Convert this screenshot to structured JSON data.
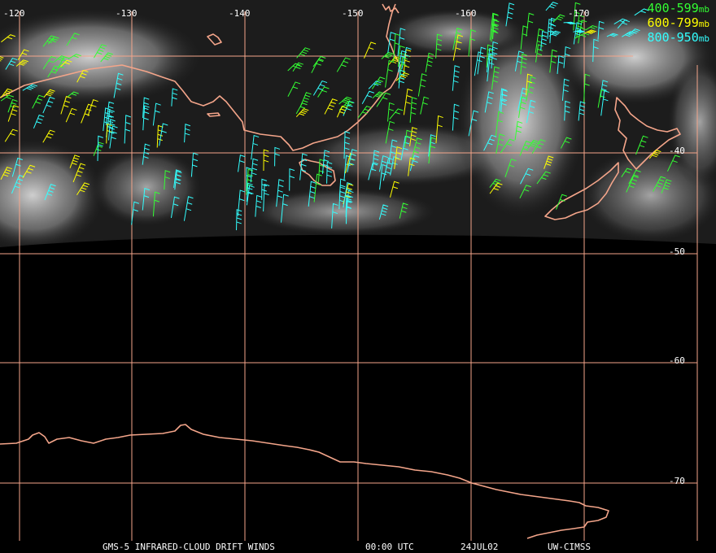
{
  "colors": {
    "grid": "#f4a58a",
    "coastline": "#f4a58a",
    "background": "#000000",
    "labels": "#ffffff"
  },
  "longitude_labels": [
    "-120",
    "-130",
    "-140",
    "-150",
    "-160",
    "-170"
  ],
  "latitude_labels": [
    "-40",
    "-50",
    "-60",
    "-70"
  ],
  "legend": [
    {
      "range": "400-599",
      "unit": "mb",
      "color": "#33ff33"
    },
    {
      "range": "600-799",
      "unit": "mb",
      "color": "#ffff00"
    },
    {
      "range": "800-950",
      "unit": "mb",
      "color": "#33ffff"
    }
  ],
  "footer": {
    "product": "GMS-5 INFRARED-CLOUD DRIFT WINDS",
    "time": "00:00 UTC",
    "date": "24JUL02",
    "source": "UW-CIMSS"
  }
}
